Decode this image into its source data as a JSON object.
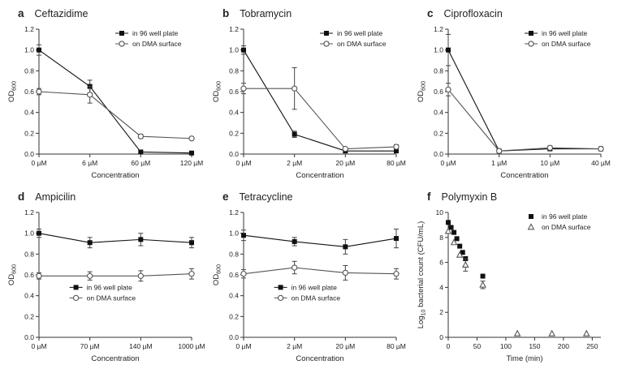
{
  "chart_data": [
    {
      "panel_label": "a",
      "title": "Ceftazidime",
      "type": "line",
      "xlabel": "Concentration",
      "ylabel": "OD_{600}",
      "categories": [
        "0 µM",
        "6 µM",
        "60 µM",
        "120 µM"
      ],
      "ylim": [
        0,
        1.2
      ],
      "yticks": [
        "0.0",
        "0.2",
        "0.4",
        "0.6",
        "0.8",
        "1.0",
        "1.2"
      ],
      "legend": "top-right",
      "series": [
        {
          "name": "in 96 well plate",
          "marker": "filled-square",
          "values": [
            1.0,
            0.65,
            0.02,
            0.01
          ],
          "errors": [
            0.05,
            0.06,
            0.01,
            0.01
          ]
        },
        {
          "name": "on DMA surface",
          "marker": "open-circle",
          "values": [
            0.6,
            0.57,
            0.17,
            0.15
          ],
          "errors": [
            0.03,
            0.08,
            0.02,
            0.01
          ]
        }
      ]
    },
    {
      "panel_label": "b",
      "title": "Tobramycin",
      "type": "line",
      "xlabel": "Concentration",
      "ylabel": "OD_{600}",
      "categories": [
        "0 µM",
        "2 µM",
        "20 µM",
        "80 µM"
      ],
      "ylim": [
        0,
        1.2
      ],
      "yticks": [
        "0.0",
        "0.2",
        "0.4",
        "0.6",
        "0.8",
        "1.0",
        "1.2"
      ],
      "legend": "top-right",
      "series": [
        {
          "name": "in 96 well plate",
          "marker": "filled-square",
          "values": [
            1.0,
            0.19,
            0.03,
            0.03
          ],
          "errors": [
            0.04,
            0.03,
            0.01,
            0.01
          ]
        },
        {
          "name": "on DMA surface",
          "marker": "open-circle",
          "values": [
            0.63,
            0.63,
            0.05,
            0.07
          ],
          "errors": [
            0.05,
            0.2,
            0.01,
            0.02
          ]
        }
      ]
    },
    {
      "panel_label": "c",
      "title": "Ciprofloxacin",
      "type": "line",
      "xlabel": "Concentration",
      "ylabel": "OD_{600}",
      "categories": [
        "0 µM",
        "1 µM",
        "10 µM",
        "40 µM"
      ],
      "ylim": [
        0,
        1.2
      ],
      "yticks": [
        "0.0",
        "0.2",
        "0.4",
        "0.6",
        "0.8",
        "1.0",
        "1.2"
      ],
      "legend": "top-right",
      "series": [
        {
          "name": "in 96 well plate",
          "marker": "filled-square",
          "values": [
            1.0,
            0.03,
            0.05,
            0.05
          ],
          "errors": [
            0.15,
            0.01,
            0.01,
            0.01
          ]
        },
        {
          "name": "on DMA surface",
          "marker": "open-circle",
          "values": [
            0.62,
            0.03,
            0.06,
            0.05
          ],
          "errors": [
            0.06,
            0.01,
            0.02,
            0.01
          ]
        }
      ]
    },
    {
      "panel_label": "d",
      "title": "Ampicilin",
      "type": "line",
      "xlabel": "Concentration",
      "ylabel": "OD_{600}",
      "categories": [
        "0 µM",
        "70 µM",
        "140 µM",
        "1000 µM"
      ],
      "ylim": [
        0,
        1.2
      ],
      "yticks": [
        "0.0",
        "0.2",
        "0.4",
        "0.6",
        "0.8",
        "1.0",
        "1.2"
      ],
      "legend": "bottom-left",
      "series": [
        {
          "name": "in 96 well plate",
          "marker": "filled-square",
          "values": [
            1.0,
            0.91,
            0.94,
            0.91
          ],
          "errors": [
            0.04,
            0.05,
            0.06,
            0.05
          ]
        },
        {
          "name": "on DMA surface",
          "marker": "open-circle",
          "values": [
            0.59,
            0.59,
            0.59,
            0.61
          ],
          "errors": [
            0.03,
            0.04,
            0.05,
            0.05
          ]
        }
      ]
    },
    {
      "panel_label": "e",
      "title": "Tetracycline",
      "type": "line",
      "xlabel": "Concentration",
      "ylabel": "OD_{600}",
      "categories": [
        "0 µM",
        "2 µM",
        "20 µM",
        "80 µM"
      ],
      "ylim": [
        0,
        1.2
      ],
      "yticks": [
        "0.0",
        "0.2",
        "0.4",
        "0.6",
        "0.8",
        "1.0",
        "1.2"
      ],
      "legend": "bottom-left",
      "series": [
        {
          "name": "in 96 well plate",
          "marker": "filled-square",
          "values": [
            0.98,
            0.92,
            0.87,
            0.95
          ],
          "errors": [
            0.05,
            0.04,
            0.07,
            0.09
          ]
        },
        {
          "name": "on DMA surface",
          "marker": "open-circle",
          "values": [
            0.61,
            0.67,
            0.62,
            0.61
          ],
          "errors": [
            0.04,
            0.06,
            0.07,
            0.05
          ]
        }
      ]
    },
    {
      "panel_label": "f",
      "title": "Polymyxin B",
      "type": "scatter",
      "xlabel": "Time (min)",
      "ylabel": "Log_{10} bacterial count (CFU/mL)",
      "xlim": [
        0,
        265
      ],
      "xticks": [
        "0",
        "50",
        "100",
        "150",
        "200",
        "250"
      ],
      "ylim": [
        0,
        10
      ],
      "yticks": [
        "0",
        "2",
        "4",
        "6",
        "8",
        "10"
      ],
      "legend": "top-right",
      "series": [
        {
          "name": "in 96 well plate",
          "marker": "filled-square",
          "points": [
            [
              0,
              9.2
            ],
            [
              5,
              8.8
            ],
            [
              10,
              8.4
            ],
            [
              15,
              7.9
            ],
            [
              20,
              7.3
            ],
            [
              25,
              6.8
            ],
            [
              30,
              6.3
            ],
            [
              60,
              4.9
            ]
          ]
        },
        {
          "name": "on DMA surface",
          "marker": "open-triangle",
          "points": [
            [
              0,
              8.5
            ],
            [
              10,
              7.6
            ],
            [
              20,
              6.6
            ],
            [
              30,
              5.8,
              0.5
            ],
            [
              60,
              4.2,
              0.3
            ],
            [
              120,
              0.3
            ],
            [
              180,
              0.3
            ],
            [
              240,
              0.3
            ]
          ]
        }
      ]
    }
  ],
  "colors": {
    "axis": "#333333",
    "square_series": "#111111",
    "circle_series": "#555555",
    "background": "#ffffff"
  }
}
